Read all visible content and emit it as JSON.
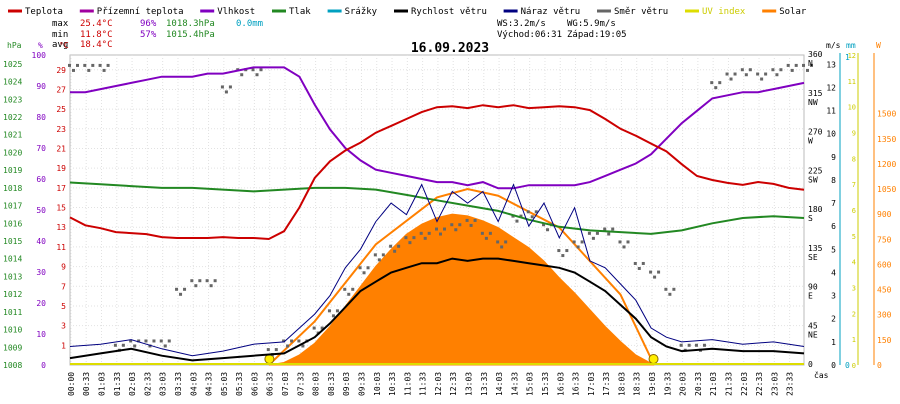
{
  "legend": [
    {
      "label": "Teplota",
      "color": "#cc0000"
    },
    {
      "label": "Přízemní teplota",
      "color": "#a000a0"
    },
    {
      "label": "Vlhkost",
      "color": "#8000c0"
    },
    {
      "label": "Tlak",
      "color": "#228822"
    },
    {
      "label": "Srážky",
      "color": "#00a0c0"
    },
    {
      "label": "Rychlost větru",
      "color": "#000000"
    },
    {
      "label": "Náraz větru",
      "color": "#000080"
    },
    {
      "label": "Směr větru",
      "color": "#666666"
    },
    {
      "label": "UV index",
      "color": "#dddd00"
    },
    {
      "label": "Solar",
      "color": "#ff8000"
    }
  ],
  "stats": {
    "max_label": "max",
    "max_temp": "25.4°C",
    "max_hum": "96%",
    "max_press": "1018.3hPa",
    "rain": "0.0mm",
    "min_label": "min",
    "min_temp": "11.8°C",
    "min_hum": "57%",
    "min_press": "1015.4hPa",
    "avg_label": "avg",
    "avg_temp": "18.4°C",
    "ws": "WS:3.2m/s",
    "wg": "WG:5.9m/s",
    "sunrise": "Východ:06:31",
    "sunset": "Západ:19:05"
  },
  "title": "16.09.2023",
  "axis_units": {
    "hpa": "hPa",
    "pct": "%",
    "temp": "°C",
    "ms": "m/s",
    "mm": "mm",
    "w": "W",
    "time": "čas"
  },
  "colors": {
    "temp": "#cc0000",
    "hum": "#8000c0",
    "press": "#228822",
    "rain": "#00a0c0",
    "wind": "#000000",
    "gust": "#000080",
    "dir": "#666666",
    "uv": "#dddd00",
    "solar": "#ff8000"
  },
  "chart_data": {
    "type": "line",
    "title": "16.09.2023",
    "x_ticks": [
      "00:00",
      "00:33",
      "01:03",
      "01:33",
      "02:03",
      "02:33",
      "03:03",
      "03:33",
      "04:03",
      "04:33",
      "05:03",
      "05:33",
      "06:03",
      "06:33",
      "07:03",
      "07:33",
      "08:03",
      "08:33",
      "09:03",
      "09:33",
      "10:03",
      "10:33",
      "11:03",
      "11:33",
      "12:03",
      "12:33",
      "13:03",
      "13:33",
      "14:03",
      "14:33",
      "15:03",
      "15:33",
      "16:03",
      "16:33",
      "17:03",
      "17:33",
      "18:03",
      "18:33",
      "19:03",
      "19:33",
      "20:03",
      "20:33",
      "21:03",
      "21:33",
      "22:03",
      "22:33",
      "23:03",
      "23:33"
    ],
    "axes": {
      "pressure": {
        "unit": "hPa",
        "ticks": [
          1008,
          1009,
          1010,
          1011,
          1012,
          1013,
          1014,
          1015,
          1016,
          1017,
          1018,
          1019,
          1020,
          1021,
          1022,
          1023,
          1024,
          1025
        ],
        "range": [
          1008,
          1025.5
        ]
      },
      "humidity": {
        "unit": "%",
        "ticks": [
          0,
          10,
          20,
          30,
          40,
          50,
          60,
          70,
          80,
          90,
          100
        ],
        "range": [
          0,
          100
        ]
      },
      "temperature": {
        "unit": "°C",
        "ticks": [
          1,
          3,
          5,
          7,
          9,
          11,
          13,
          15,
          17,
          19,
          21,
          23,
          25,
          27,
          29
        ],
        "range": [
          -1,
          30.5
        ]
      },
      "wind_dir": {
        "ticks": [
          "360 N",
          "315 NW",
          "270 W",
          "225 SW",
          "180 S",
          "135 SE",
          "90 E",
          "45 NE",
          "0"
        ]
      },
      "wind_speed": {
        "unit": "m/s",
        "ticks": [
          0,
          1,
          2,
          3,
          4,
          5,
          6,
          7,
          8,
          9,
          10,
          11,
          12,
          13
        ],
        "range": [
          0,
          13.4
        ]
      },
      "rain": {
        "unit": "mm",
        "ticks": [
          0,
          1
        ],
        "range": [
          0,
          1
        ]
      },
      "uv": {
        "ticks": [
          0,
          1,
          2,
          3,
          4,
          5,
          6,
          7,
          8,
          9,
          10,
          11,
          12
        ],
        "range": [
          0,
          12
        ]
      },
      "solar": {
        "unit": "W",
        "ticks": [
          0,
          150,
          300,
          450,
          600,
          750,
          900,
          1050,
          1200,
          1350,
          1500
        ],
        "range": [
          0,
          1850
        ]
      }
    },
    "series": [
      {
        "name": "Teplota",
        "unit": "°C",
        "x": [
          0,
          0.5,
          1,
          1.5,
          2,
          2.5,
          3,
          3.5,
          4,
          4.5,
          5,
          5.5,
          6,
          6.5,
          7,
          7.5,
          8,
          8.5,
          9,
          9.5,
          10,
          10.5,
          11,
          11.5,
          12,
          12.5,
          13,
          13.5,
          14,
          14.5,
          15,
          15.5,
          16,
          16.5,
          17,
          17.5,
          18,
          18.5,
          19,
          19.5,
          20,
          20.5,
          21,
          21.5,
          22,
          22.5,
          23,
          23.5,
          24
        ],
        "values": [
          14.0,
          13.2,
          12.9,
          12.5,
          12.4,
          12.3,
          12.0,
          11.9,
          11.9,
          11.9,
          12.0,
          11.9,
          11.9,
          11.8,
          12.6,
          15.0,
          18.0,
          19.7,
          20.8,
          21.6,
          22.6,
          23.3,
          24.0,
          24.7,
          25.2,
          25.3,
          25.1,
          25.4,
          25.2,
          25.4,
          25.1,
          25.2,
          25.3,
          25.2,
          24.9,
          24.0,
          23.0,
          22.3,
          21.5,
          20.7,
          19.4,
          18.2,
          17.8,
          17.5,
          17.3,
          17.6,
          17.4,
          17.0,
          16.8
        ]
      },
      {
        "name": "Vlhkost",
        "unit": "%",
        "x": [
          0,
          0.5,
          1,
          1.5,
          2,
          2.5,
          3,
          3.5,
          4,
          4.5,
          5,
          5.5,
          6,
          6.5,
          7,
          7.5,
          8,
          8.5,
          9,
          9.5,
          10,
          10.5,
          11,
          11.5,
          12,
          12.5,
          13,
          13.5,
          14,
          14.5,
          15,
          15.5,
          16,
          16.5,
          17,
          17.5,
          18,
          18.5,
          19,
          19.5,
          20,
          20.5,
          21,
          21.5,
          22,
          22.5,
          23,
          23.5,
          24
        ],
        "values": [
          88,
          88,
          89,
          90,
          91,
          92,
          93,
          93,
          93,
          94,
          94,
          95,
          96,
          96,
          96,
          93,
          84,
          76,
          70,
          66,
          63,
          62,
          61,
          60,
          59,
          59,
          58,
          59,
          57,
          57,
          58,
          58,
          58,
          58,
          59,
          61,
          63,
          65,
          68,
          73,
          78,
          82,
          86,
          87,
          88,
          88,
          89,
          90,
          91
        ]
      },
      {
        "name": "Tlak",
        "unit": "hPa",
        "x": [
          0,
          1,
          2,
          3,
          4,
          5,
          6,
          7,
          8,
          9,
          10,
          11,
          12,
          13,
          14,
          15,
          16,
          17,
          18,
          19,
          20,
          21,
          22,
          23,
          24
        ],
        "values": [
          1018.3,
          1018.2,
          1018.1,
          1018.0,
          1018.0,
          1017.9,
          1017.8,
          1017.9,
          1018.0,
          1018.0,
          1017.9,
          1017.6,
          1017.3,
          1017.0,
          1016.7,
          1016.2,
          1015.8,
          1015.6,
          1015.5,
          1015.4,
          1015.6,
          1016.0,
          1016.3,
          1016.4,
          1016.3
        ]
      },
      {
        "name": "Rychlost větru",
        "unit": "m/s",
        "x": [
          0,
          1,
          2,
          3,
          4,
          5,
          6,
          7,
          8,
          8.5,
          9,
          9.5,
          10,
          10.5,
          11,
          11.5,
          12,
          12.5,
          13,
          13.5,
          14,
          14.5,
          15,
          15.5,
          16,
          16.5,
          17,
          17.5,
          18,
          18.5,
          19,
          19.5,
          20,
          21,
          22,
          23,
          24
        ],
        "values": [
          0.3,
          0.5,
          0.7,
          0.4,
          0.2,
          0.3,
          0.4,
          0.5,
          1.2,
          1.8,
          2.5,
          3.2,
          3.6,
          4.0,
          4.2,
          4.4,
          4.4,
          4.6,
          4.5,
          4.6,
          4.6,
          4.5,
          4.4,
          4.3,
          4.2,
          4.0,
          3.6,
          3.2,
          2.6,
          2.0,
          1.2,
          0.8,
          0.6,
          0.7,
          0.6,
          0.6,
          0.5
        ]
      },
      {
        "name": "Náraz větru",
        "unit": "m/s",
        "x": [
          0,
          1,
          2,
          3,
          4,
          5,
          6,
          7,
          8,
          8.5,
          9,
          9.5,
          10,
          10.5,
          11,
          11.5,
          12,
          12.5,
          13,
          13.5,
          14,
          14.5,
          15,
          15.5,
          16,
          16.5,
          17,
          17.5,
          18,
          18.5,
          19,
          19.5,
          20,
          21,
          22,
          23,
          24
        ],
        "values": [
          0.8,
          0.9,
          1.1,
          0.7,
          0.4,
          0.6,
          0.9,
          1.0,
          2.2,
          3.0,
          4.2,
          5.0,
          6.2,
          7.0,
          6.5,
          7.8,
          6.2,
          7.5,
          7.0,
          7.5,
          6.2,
          7.8,
          6.0,
          7.0,
          5.5,
          6.8,
          4.5,
          4.2,
          3.5,
          2.8,
          1.6,
          1.2,
          1.0,
          1.1,
          0.9,
          1.0,
          0.8
        ]
      },
      {
        "name": "Směr větru",
        "unit": "°",
        "x": [
          0,
          0.5,
          1,
          1.5,
          2,
          2.5,
          3,
          3.5,
          4,
          4.5,
          5,
          5.5,
          6,
          6.5,
          7,
          7.5,
          8,
          8.5,
          9,
          9.5,
          10,
          10.5,
          11,
          11.5,
          12,
          12.5,
          13,
          13.5,
          14,
          14.5,
          15,
          15.5,
          16,
          16.5,
          17,
          17.5,
          18,
          18.5,
          19,
          19.5,
          20,
          20.5,
          21,
          21.5,
          22,
          22.5,
          23,
          23.5,
          24
        ],
        "values": [
          345,
          345,
          345,
          20,
          25,
          25,
          25,
          85,
          95,
          95,
          320,
          340,
          340,
          15,
          25,
          25,
          40,
          60,
          85,
          110,
          125,
          135,
          145,
          150,
          155,
          160,
          165,
          150,
          140,
          170,
          175,
          160,
          130,
          140,
          150,
          155,
          140,
          115,
          105,
          85,
          20,
          20,
          325,
          335,
          340,
          335,
          340,
          345,
          345
        ]
      },
      {
        "name": "Solar",
        "unit": "W",
        "x": [
          6.5,
          7,
          7.5,
          8,
          8.5,
          9,
          9.5,
          10,
          10.5,
          11,
          11.5,
          12,
          12.5,
          13,
          13.5,
          14,
          14.5,
          15,
          15.5,
          16,
          16.5,
          17,
          17.5,
          18,
          18.5,
          19.1
        ],
        "values": [
          0,
          15,
          60,
          130,
          230,
          350,
          470,
          590,
          690,
          780,
          840,
          880,
          900,
          890,
          860,
          820,
          760,
          700,
          620,
          520,
          430,
          330,
          230,
          140,
          60,
          0
        ]
      },
      {
        "name": "Srážky",
        "unit": "mm",
        "x": [
          0,
          24
        ],
        "values": [
          0,
          0
        ]
      }
    ],
    "sunrise_marker": "06:31",
    "sunset_marker": "19:05",
    "grid": true
  }
}
